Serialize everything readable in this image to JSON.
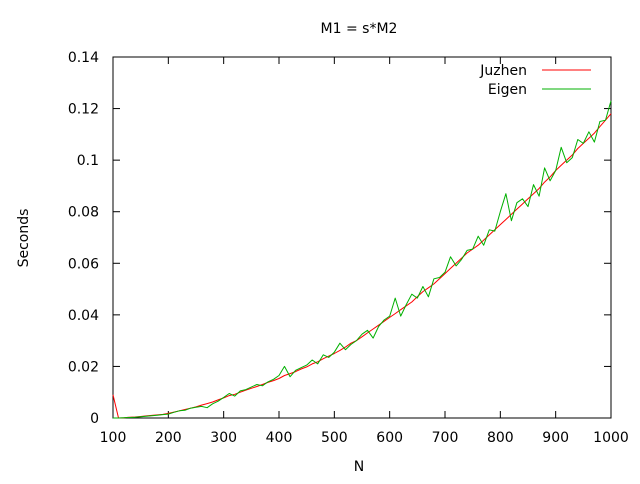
{
  "chart_data": {
    "type": "line",
    "title": "M1 = s*M2",
    "xlabel": "N",
    "ylabel": "Seconds",
    "xlim": [
      100,
      1000
    ],
    "ylim": [
      0,
      0.14
    ],
    "xticks": [
      100,
      200,
      300,
      400,
      500,
      600,
      700,
      800,
      900,
      1000
    ],
    "yticks": [
      0,
      0.02,
      0.04,
      0.06,
      0.08,
      0.1,
      0.12,
      0.14
    ],
    "xtick_labels": [
      "100",
      "200",
      "300",
      "400",
      "500",
      "600",
      "700",
      "800",
      "900",
      "1000"
    ],
    "ytick_labels": [
      "0",
      "0.02",
      "0.04",
      "0.06",
      "0.08",
      "0.1",
      "0.12",
      "0.14"
    ],
    "grid": false,
    "legend_position": "top-right",
    "x": [
      100,
      110,
      120,
      130,
      140,
      150,
      160,
      170,
      180,
      190,
      200,
      210,
      220,
      230,
      240,
      250,
      260,
      270,
      280,
      290,
      300,
      310,
      320,
      330,
      340,
      350,
      360,
      370,
      380,
      390,
      400,
      410,
      420,
      430,
      440,
      450,
      460,
      470,
      480,
      490,
      500,
      510,
      520,
      530,
      540,
      550,
      560,
      570,
      580,
      590,
      600,
      610,
      620,
      630,
      640,
      650,
      660,
      670,
      680,
      690,
      700,
      710,
      720,
      730,
      740,
      750,
      760,
      770,
      780,
      790,
      800,
      810,
      820,
      830,
      840,
      850,
      860,
      870,
      880,
      890,
      900,
      910,
      920,
      930,
      940,
      950,
      960,
      970,
      980,
      990,
      1000
    ],
    "series": [
      {
        "name": "Juzhen",
        "color": "#ff0000",
        "values": [
          0.009,
          0.0,
          0.0001,
          0.0003,
          0.0004,
          0.0006,
          0.0008,
          0.001,
          0.0012,
          0.0014,
          0.0018,
          0.0023,
          0.0028,
          0.0033,
          0.0038,
          0.0043,
          0.005,
          0.0056,
          0.0062,
          0.007,
          0.0078,
          0.0087,
          0.0092,
          0.01,
          0.0108,
          0.0115,
          0.0122,
          0.013,
          0.0138,
          0.0145,
          0.0153,
          0.0165,
          0.0172,
          0.018,
          0.019,
          0.0198,
          0.021,
          0.0218,
          0.023,
          0.024,
          0.025,
          0.0262,
          0.0275,
          0.029,
          0.03,
          0.0315,
          0.033,
          0.0345,
          0.036,
          0.0375,
          0.039,
          0.0405,
          0.042,
          0.0435,
          0.045,
          0.047,
          0.049,
          0.0505,
          0.052,
          0.054,
          0.056,
          0.058,
          0.06,
          0.062,
          0.064,
          0.0655,
          0.067,
          0.069,
          0.071,
          0.073,
          0.075,
          0.077,
          0.079,
          0.081,
          0.083,
          0.085,
          0.087,
          0.089,
          0.0915,
          0.0935,
          0.096,
          0.098,
          0.1,
          0.102,
          0.1045,
          0.1065,
          0.1085,
          0.1105,
          0.113,
          0.1155,
          0.118
        ]
      },
      {
        "name": "Eigen",
        "color": "#00b000",
        "values": [
          0.0,
          0.0,
          0.0001,
          0.0002,
          0.0003,
          0.0005,
          0.0007,
          0.0009,
          0.0011,
          0.0013,
          0.0015,
          0.0022,
          0.0028,
          0.003,
          0.0038,
          0.0042,
          0.0045,
          0.004,
          0.0055,
          0.0065,
          0.008,
          0.0095,
          0.0085,
          0.0105,
          0.011,
          0.012,
          0.013,
          0.0125,
          0.014,
          0.015,
          0.0165,
          0.02,
          0.016,
          0.0185,
          0.0195,
          0.0205,
          0.0225,
          0.021,
          0.0245,
          0.0235,
          0.0255,
          0.029,
          0.0265,
          0.0285,
          0.03,
          0.0325,
          0.034,
          0.031,
          0.0355,
          0.038,
          0.0395,
          0.0465,
          0.0395,
          0.044,
          0.048,
          0.0465,
          0.051,
          0.047,
          0.054,
          0.0545,
          0.0565,
          0.0625,
          0.059,
          0.0615,
          0.065,
          0.0655,
          0.0705,
          0.067,
          0.073,
          0.0725,
          0.08,
          0.087,
          0.0765,
          0.0835,
          0.085,
          0.082,
          0.0905,
          0.086,
          0.097,
          0.092,
          0.096,
          0.105,
          0.099,
          0.101,
          0.108,
          0.1065,
          0.111,
          0.107,
          0.115,
          0.1155,
          0.123
        ]
      }
    ]
  }
}
